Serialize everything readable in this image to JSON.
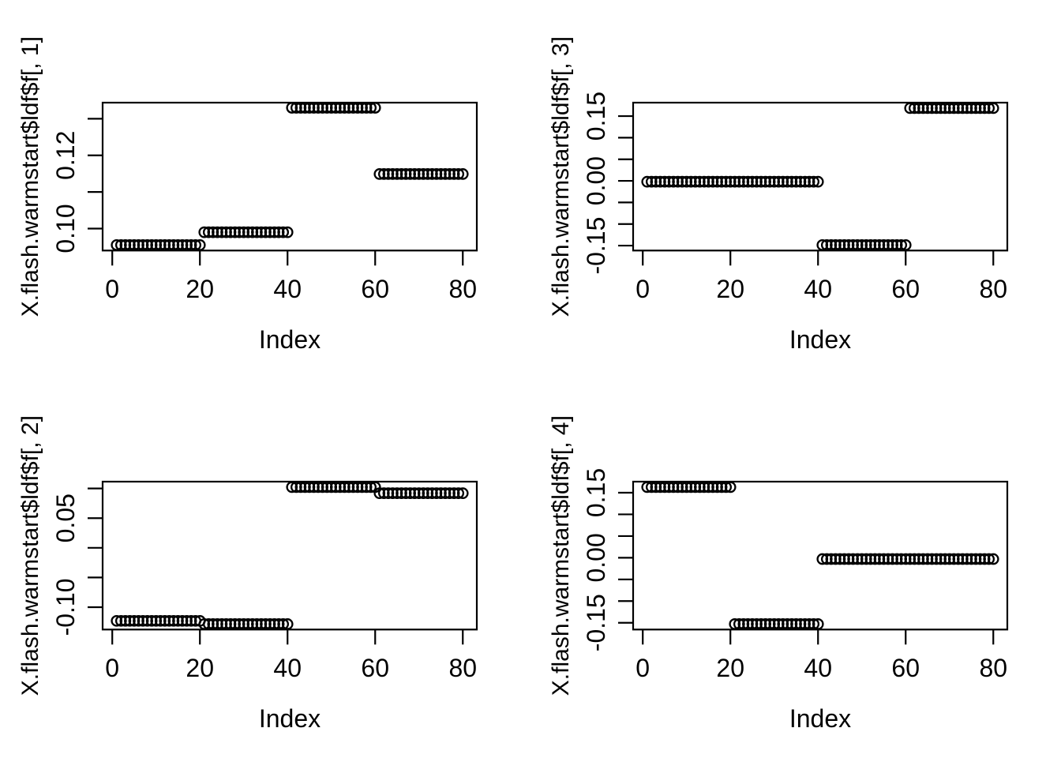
{
  "figure": {
    "background": "#ffffff",
    "stroke_color": "#000000",
    "layout": "2x2-grid-of-r-base-plots"
  },
  "chart_data": [
    {
      "type": "scatter",
      "marker": "open-circle",
      "title": "",
      "xlabel": "Index",
      "ylabel": "X.flash.warmstart$ldf$f[, 1]",
      "xlim": [
        -2.2,
        83.2
      ],
      "ylim": [
        0.094,
        0.1344
      ],
      "grid": false,
      "xticks": [
        0,
        20,
        40,
        60,
        80
      ],
      "xtick_labels": [
        "0",
        "20",
        "40",
        "60",
        "80"
      ],
      "yticks": [
        0.1,
        0.11,
        0.12,
        0.13
      ],
      "ytick_labels": [
        "0.10",
        "",
        "0.12",
        ""
      ],
      "segments": [
        {
          "from": 1,
          "to": 20,
          "value": 0.0955
        },
        {
          "from": 21,
          "to": 40,
          "value": 0.099
        },
        {
          "from": 41,
          "to": 60,
          "value": 0.133
        },
        {
          "from": 61,
          "to": 80,
          "value": 0.1149
        }
      ]
    },
    {
      "type": "scatter",
      "marker": "open-circle",
      "title": "",
      "xlabel": "Index",
      "ylabel": "X.flash.warmstart$ldf$f[, 3]",
      "xlim": [
        -2.2,
        83.2
      ],
      "ylim": [
        -0.1614,
        0.1812
      ],
      "grid": false,
      "xticks": [
        0,
        20,
        40,
        60,
        80
      ],
      "xtick_labels": [
        "0",
        "20",
        "40",
        "60",
        "80"
      ],
      "yticks": [
        -0.15,
        -0.1,
        -0.05,
        0.0,
        0.05,
        0.1,
        0.15
      ],
      "ytick_labels": [
        "-0.15",
        "",
        "",
        "0.00",
        "",
        "",
        "0.15"
      ],
      "segments": [
        {
          "from": 1,
          "to": 40,
          "value": -0.002
        },
        {
          "from": 41,
          "to": 60,
          "value": -0.1487
        },
        {
          "from": 61,
          "to": 80,
          "value": 0.1685
        }
      ]
    },
    {
      "type": "scatter",
      "marker": "open-circle",
      "title": "",
      "xlabel": "Index",
      "ylabel": "X.flash.warmstart$ldf$f[, 2]",
      "xlim": [
        -2.2,
        83.2
      ],
      "ylim": [
        -0.1377,
        0.1115
      ],
      "grid": false,
      "xticks": [
        0,
        20,
        40,
        60,
        80
      ],
      "xtick_labels": [
        "0",
        "20",
        "40",
        "60",
        "80"
      ],
      "yticks": [
        -0.1,
        -0.05,
        0.0,
        0.05,
        0.1
      ],
      "ytick_labels": [
        "-0.10",
        "",
        "",
        "0.05",
        ""
      ],
      "segments": [
        {
          "from": 1,
          "to": 20,
          "value": -0.1231
        },
        {
          "from": 21,
          "to": 40,
          "value": -0.1285
        },
        {
          "from": 41,
          "to": 60,
          "value": 0.1023
        },
        {
          "from": 61,
          "to": 80,
          "value": 0.092
        }
      ]
    },
    {
      "type": "scatter",
      "marker": "open-circle",
      "title": "",
      "xlabel": "Index",
      "ylabel": "X.flash.warmstart$ldf$f[, 4]",
      "xlim": [
        -2.2,
        83.2
      ],
      "ylim": [
        -0.1656,
        0.1755
      ],
      "grid": false,
      "xticks": [
        0,
        20,
        40,
        60,
        80
      ],
      "xtick_labels": [
        "0",
        "20",
        "40",
        "60",
        "80"
      ],
      "yticks": [
        -0.15,
        -0.1,
        -0.05,
        0.0,
        0.05,
        0.1,
        0.15
      ],
      "ytick_labels": [
        "-0.15",
        "",
        "",
        "0.00",
        "",
        "",
        "0.15"
      ],
      "segments": [
        {
          "from": 1,
          "to": 20,
          "value": 0.1629
        },
        {
          "from": 21,
          "to": 40,
          "value": -0.153
        },
        {
          "from": 41,
          "to": 80,
          "value": -0.003
        }
      ]
    }
  ]
}
